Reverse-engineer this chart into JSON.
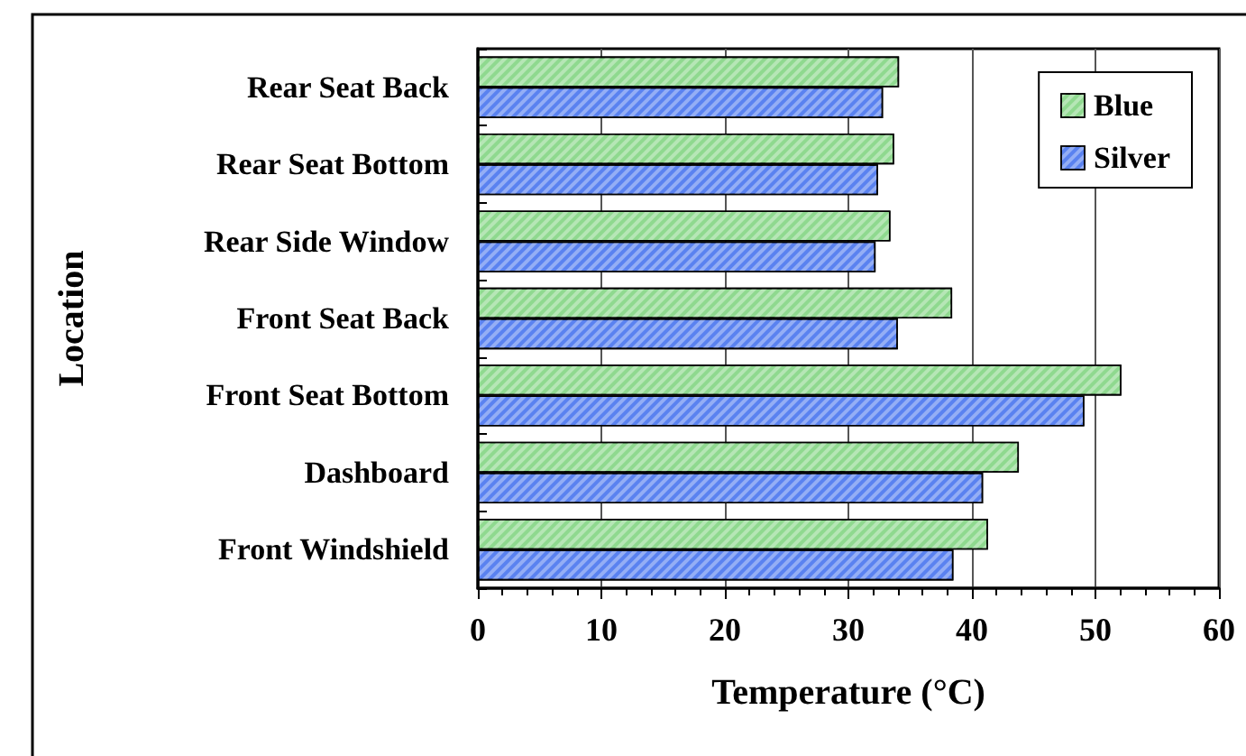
{
  "chart_data": {
    "type": "bar",
    "orientation": "horizontal",
    "xlabel": "Temperature (°C)",
    "ylabel": "Location",
    "categories": [
      "Rear Seat Back",
      "Rear Seat Bottom",
      "Rear Side Window",
      "Front Seat Back",
      "Front Seat Bottom",
      "Dashboard",
      "Front Windshield"
    ],
    "series": [
      {
        "name": "Blue",
        "color": "#8fd98f",
        "values": [
          34.1,
          33.7,
          33.4,
          38.4,
          52.1,
          43.8,
          41.3
        ]
      },
      {
        "name": "Silver",
        "color": "#5a82f0",
        "values": [
          32.8,
          32.4,
          32.2,
          34.0,
          49.1,
          40.9,
          38.5
        ]
      }
    ],
    "xlim": [
      0,
      60
    ],
    "xticks": [
      0,
      10,
      20,
      30,
      40,
      50,
      60
    ],
    "grid": "x",
    "legend": "top right"
  }
}
